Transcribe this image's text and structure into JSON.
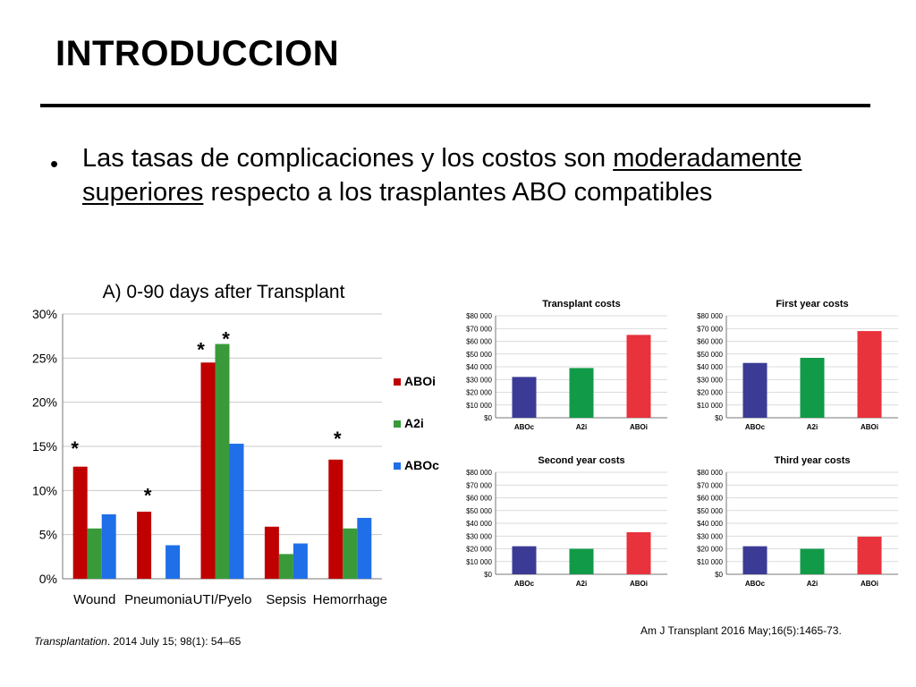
{
  "slide": {
    "title": "INTRODUCCION",
    "bullet": {
      "part1": "Las tasas de complicaciones y los costos son ",
      "underline1": "moderadamente",
      "underline2": "superiores",
      "part2": " respecto a los trasplantes ABO compatibles"
    },
    "citation_left_italic": "Transplantation",
    "citation_left_rest": ". 2014 July 15; 98(1): 54–65",
    "citation_right": "Am J Transplant 2016 May;16(5):1465-73."
  },
  "colors": {
    "red": "#c00000",
    "green": "#3a9a3a",
    "blue": "#1f6fe8",
    "navy": "#3b3b96",
    "green2": "#119a48",
    "red2": "#e8323c"
  },
  "chart_data": [
    {
      "type": "bar",
      "title": "A) 0-90 days after Transplant",
      "categories": [
        "Wound",
        "Pneumonia",
        "UTI/Pyelo",
        "Sepsis",
        "Hemorrhage"
      ],
      "series": [
        {
          "name": "ABOi",
          "color": "#c00000",
          "values": [
            12.7,
            7.6,
            24.5,
            5.9,
            13.5
          ]
        },
        {
          "name": "A2i",
          "color": "#3a9a3a",
          "values": [
            5.7,
            null,
            26.6,
            2.8,
            5.7
          ]
        },
        {
          "name": "ABOc",
          "color": "#1f6fe8",
          "values": [
            7.3,
            3.8,
            15.3,
            4.0,
            6.9
          ]
        }
      ],
      "ylim": [
        0,
        30
      ],
      "yticks": [
        "0%",
        "5%",
        "10%",
        "15%",
        "20%",
        "25%",
        "30%"
      ],
      "annotations": [
        {
          "category": "Wound",
          "text": "*",
          "y": 15.2
        },
        {
          "category": "Pneumonia",
          "text": "*",
          "y": 9.9
        },
        {
          "category": "UTI/Pyelo",
          "text": "*",
          "y": 26.4
        },
        {
          "category": "UTI/Pyelo",
          "text": "*",
          "y": 27.6
        },
        {
          "category": "Hemorrhage",
          "text": "*",
          "y": 16.3
        }
      ],
      "legend": "right"
    },
    {
      "type": "bar",
      "title": "Transplant costs",
      "categories": [
        "ABOc",
        "A2i",
        "ABOi"
      ],
      "values": [
        32000,
        39000,
        65000
      ],
      "ylim": [
        0,
        80000
      ],
      "yticks": [
        "$0",
        "$10 000",
        "$20 000",
        "$30 000",
        "$40 000",
        "$50 000",
        "$60 000",
        "$70 000",
        "$80 000"
      ]
    },
    {
      "type": "bar",
      "title": "First year costs",
      "categories": [
        "ABOc",
        "A2i",
        "ABOi"
      ],
      "values": [
        43000,
        47000,
        68000
      ],
      "ylim": [
        0,
        80000
      ],
      "yticks": [
        "$0",
        "$10 000",
        "$20 000",
        "$30 000",
        "$40 000",
        "$50 000",
        "$60 000",
        "$70 000",
        "$80 000"
      ]
    },
    {
      "type": "bar",
      "title": "Second year costs",
      "categories": [
        "ABOc",
        "A2i",
        "ABOi"
      ],
      "values": [
        22000,
        20000,
        33000
      ],
      "ylim": [
        0,
        80000
      ],
      "yticks": [
        "$0",
        "$10 000",
        "$20 000",
        "$30 000",
        "$40 000",
        "$50 000",
        "$60 000",
        "$70 000",
        "$80 000"
      ]
    },
    {
      "type": "bar",
      "title": "Third year costs",
      "categories": [
        "ABOc",
        "A2i",
        "ABOi"
      ],
      "values": [
        22000,
        20000,
        29500
      ],
      "ylim": [
        0,
        80000
      ],
      "yticks": [
        "$0",
        "$10 000",
        "$20 000",
        "$30 000",
        "$40 000",
        "$50 000",
        "$60 000",
        "$70 000",
        "$80 000"
      ]
    }
  ]
}
